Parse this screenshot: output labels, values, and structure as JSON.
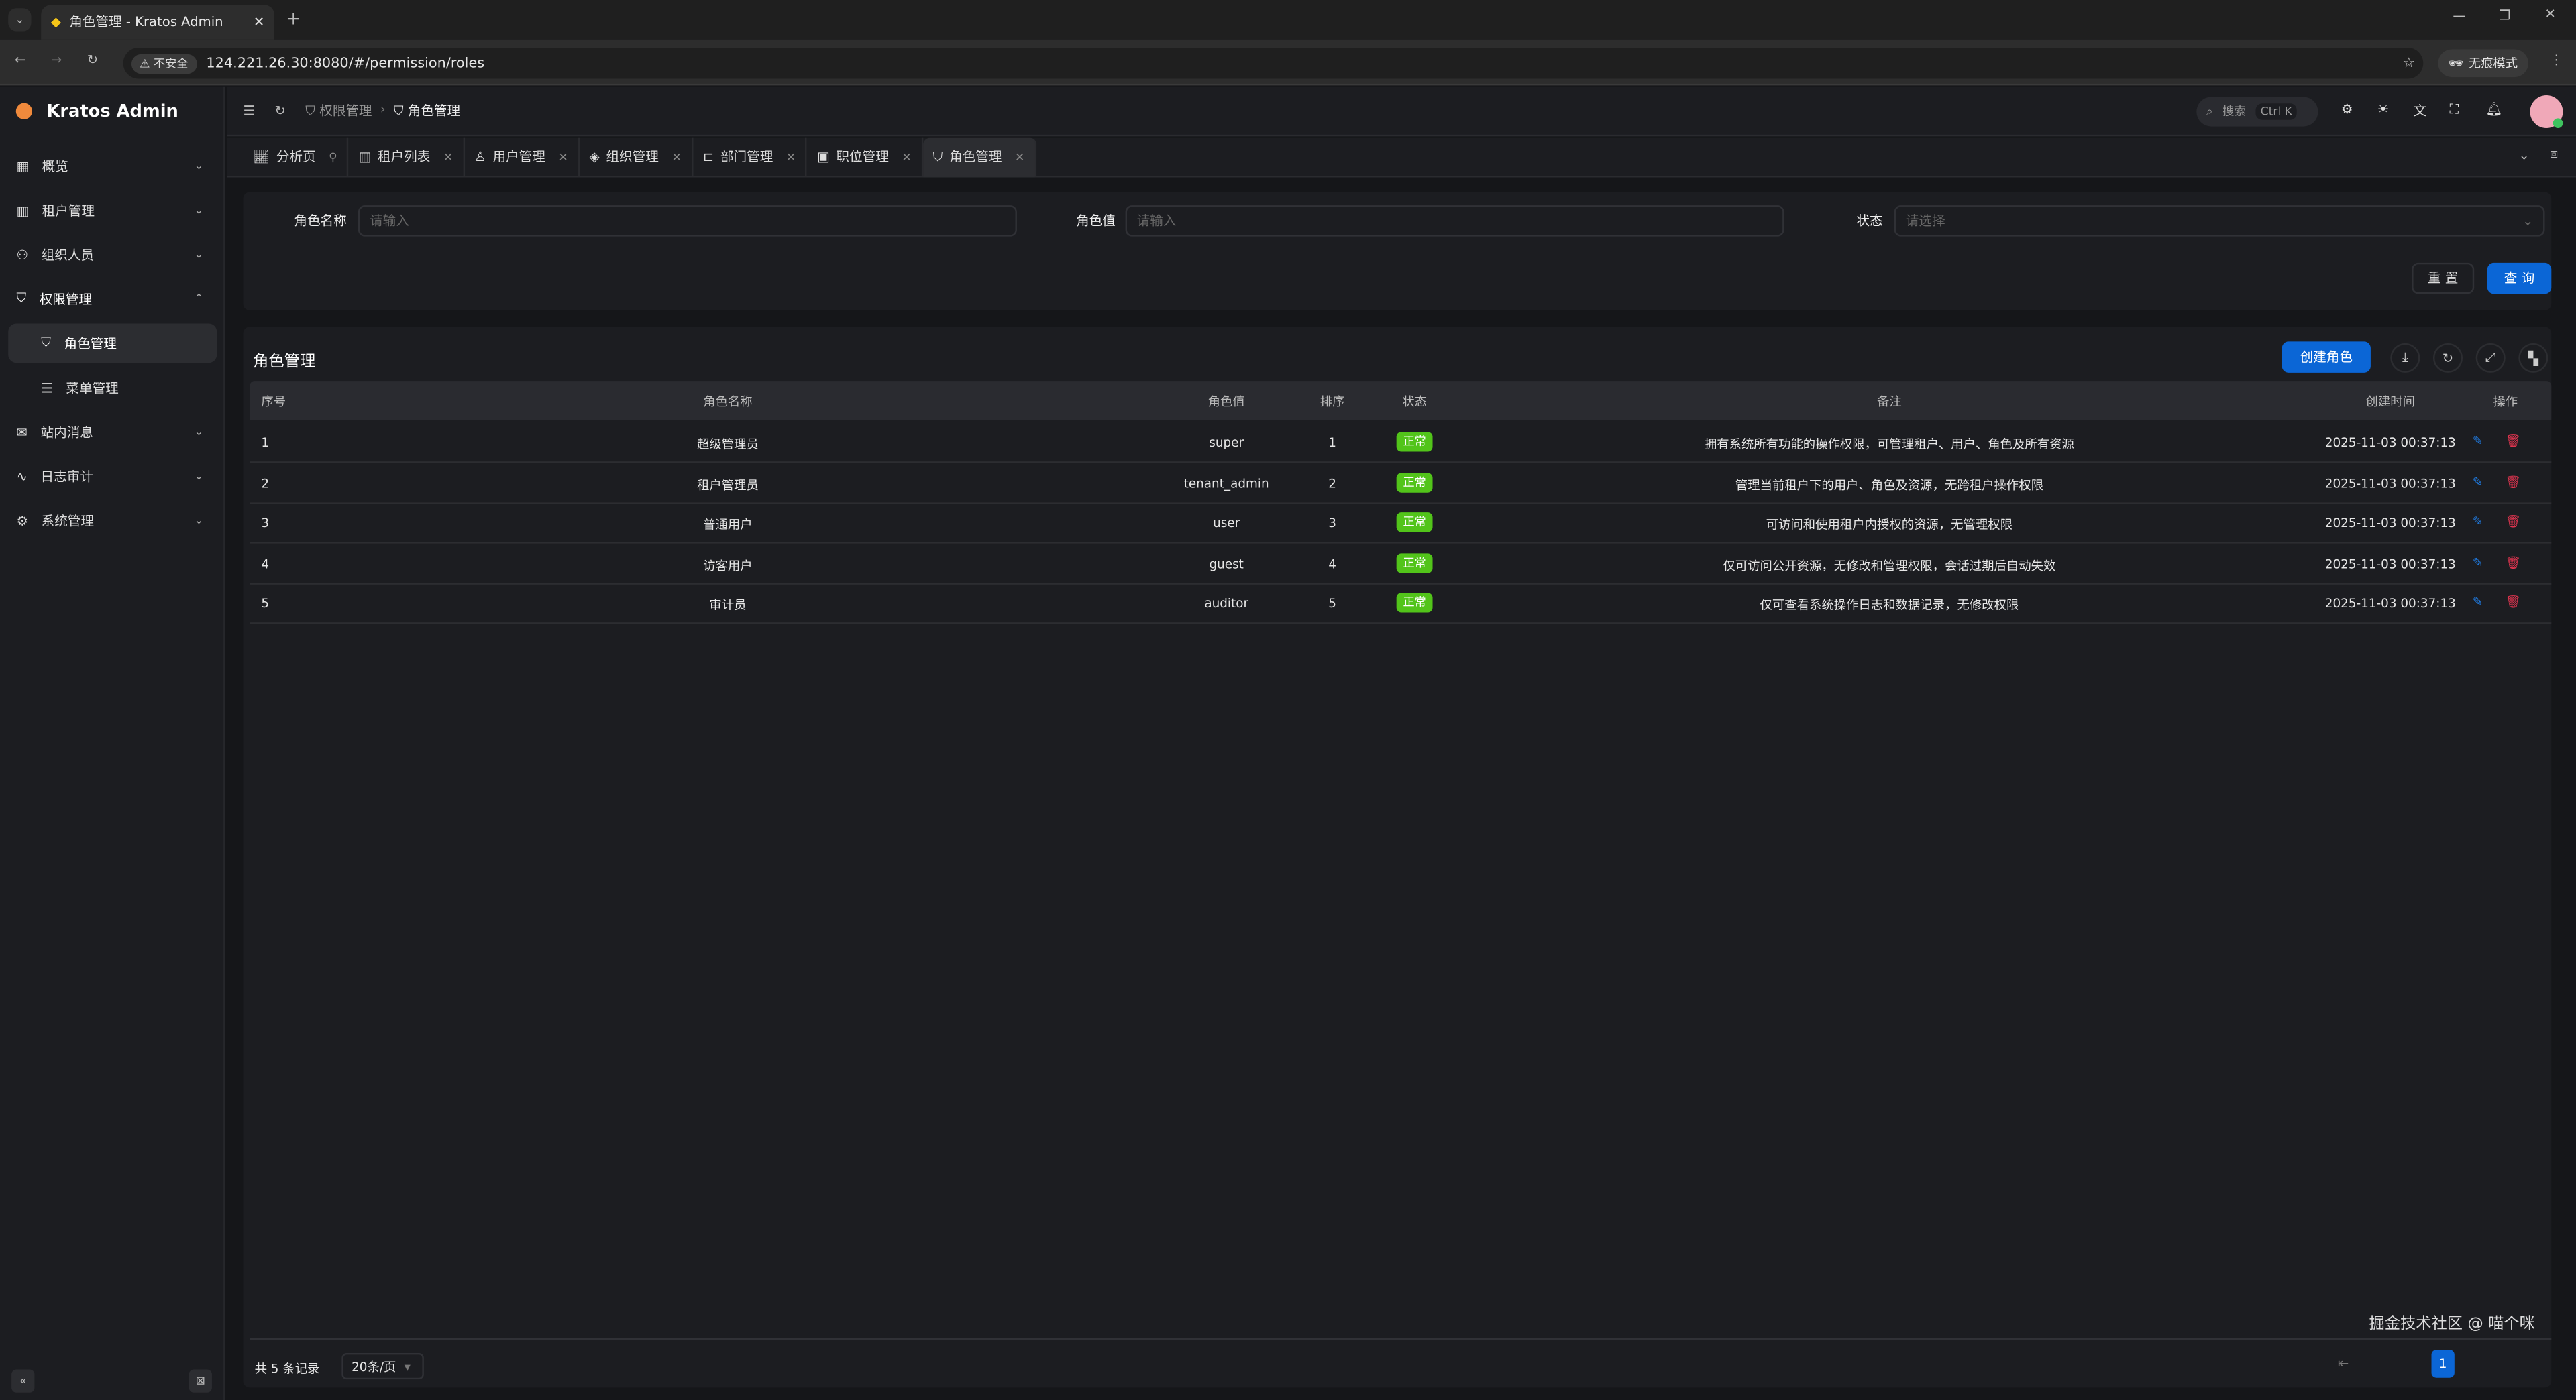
{
  "browser": {
    "tab_title": "角色管理 - Kratos Admin",
    "insecure": "不安全",
    "url": "124.221.26.30:8080/#/permission/roles",
    "incognito": "无痕模式"
  },
  "app": {
    "name": "Kratos Admin"
  },
  "sidebar": {
    "items": [
      {
        "label": "概览",
        "icon": "grid-icon"
      },
      {
        "label": "租户管理",
        "icon": "building-icon"
      },
      {
        "label": "组织人员",
        "icon": "users-icon"
      },
      {
        "label": "权限管理",
        "icon": "shield-check-icon"
      },
      {
        "label": "角色管理",
        "icon": "shield-user-icon"
      },
      {
        "label": "菜单管理",
        "icon": "list-icon"
      },
      {
        "label": "站内消息",
        "icon": "mail-icon"
      },
      {
        "label": "日志审计",
        "icon": "activity-icon"
      },
      {
        "label": "系统管理",
        "icon": "gear-icon"
      }
    ]
  },
  "header": {
    "breadcrumb": [
      "权限管理",
      "角色管理"
    ],
    "search_label": "搜索",
    "search_shortcut": "Ctrl K"
  },
  "page_tabs": [
    {
      "label": "分析页"
    },
    {
      "label": "租户列表"
    },
    {
      "label": "用户管理"
    },
    {
      "label": "组织管理"
    },
    {
      "label": "部门管理"
    },
    {
      "label": "职位管理"
    },
    {
      "label": "角色管理"
    }
  ],
  "search": {
    "role_name_label": "角色名称",
    "role_name_placeholder": "请输入",
    "role_value_label": "角色值",
    "role_value_placeholder": "请输入",
    "status_label": "状态",
    "status_placeholder": "请选择",
    "reset": "重 置",
    "query": "查 询"
  },
  "table": {
    "title": "角色管理",
    "create": "创建角色",
    "columns": [
      "序号",
      "角色名称",
      "角色值",
      "排序",
      "状态",
      "备注",
      "创建时间",
      "操作"
    ],
    "rows": [
      [
        "1",
        "超级管理员",
        "super",
        "1",
        "正常",
        "拥有系统所有功能的操作权限，可管理租户、用户、角色及所有资源",
        "2025-11-03 00:37:13"
      ],
      [
        "2",
        "租户管理员",
        "tenant_admin",
        "2",
        "正常",
        "管理当前租户下的用户、角色及资源，无跨租户操作权限",
        "2025-11-03 00:37:13"
      ],
      [
        "3",
        "普通用户",
        "user",
        "3",
        "正常",
        "可访问和使用租户内授权的资源，无管理权限",
        "2025-11-03 00:37:13"
      ],
      [
        "4",
        "访客用户",
        "guest",
        "4",
        "正常",
        "仅可访问公开资源，无修改和管理权限，会话过期后自动失效",
        "2025-11-03 00:37:13"
      ],
      [
        "5",
        "审计员",
        "auditor",
        "5",
        "正常",
        "仅可查看系统操作日志和数据记录，无修改权限",
        "2025-11-03 00:37:13"
      ]
    ]
  },
  "pagination": {
    "total": "共 5 条记录",
    "page_size": "20条/页",
    "current_page": "1"
  },
  "watermark": "掘金技术社区 @ 喵个咪",
  "colors": {
    "primary": "#0b66d6",
    "success": "#52c41a",
    "danger": "#e0344f"
  }
}
